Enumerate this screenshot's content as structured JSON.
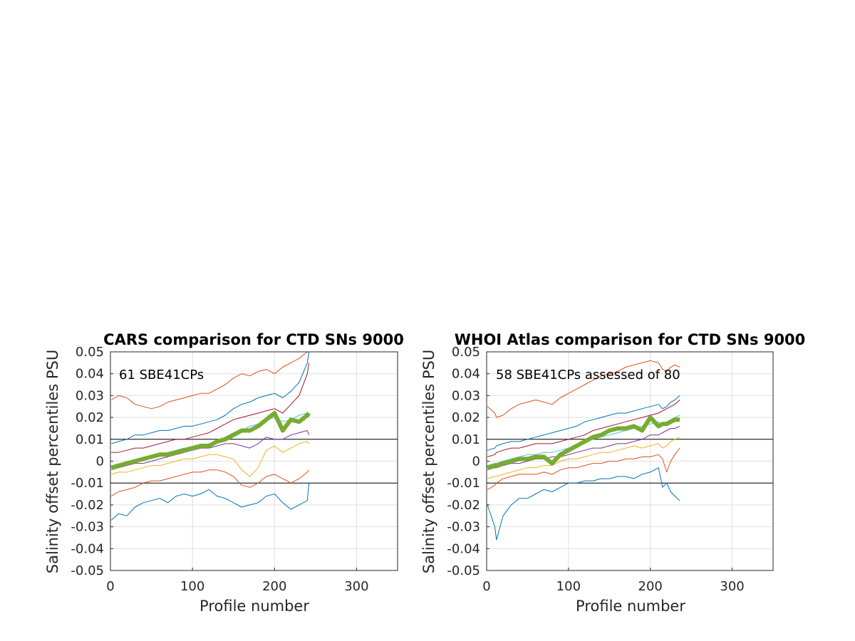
{
  "chart_data": [
    {
      "type": "line",
      "title": "CARS comparison for CTD SNs 9000",
      "xlabel": "Profile number",
      "ylabel": "Salinity offset percentiles PSU",
      "annotation": "61 SBE41CPs",
      "xlim": [
        0,
        350
      ],
      "ylim": [
        -0.05,
        0.05
      ],
      "xticks": [
        "0",
        "100",
        "200",
        "300"
      ],
      "yticks": [
        "-0.05",
        "-0.04",
        "-0.03",
        "-0.02",
        "-0.01",
        "0",
        "0.01",
        "0.02",
        "0.03",
        "0.04",
        "0.05"
      ],
      "reference_lines": [
        0.01,
        -0.01
      ],
      "grid": true,
      "x": [
        1,
        10,
        20,
        30,
        40,
        50,
        60,
        70,
        80,
        90,
        100,
        110,
        120,
        130,
        140,
        150,
        160,
        170,
        180,
        190,
        200,
        210,
        220,
        230,
        240,
        242
      ],
      "series": [
        {
          "color": "#0072BD",
          "values": [
            -0.027,
            -0.024,
            -0.025,
            -0.021,
            -0.019,
            -0.018,
            -0.017,
            -0.019,
            -0.016,
            -0.015,
            -0.016,
            -0.015,
            -0.013,
            -0.016,
            -0.017,
            -0.019,
            -0.021,
            -0.02,
            -0.019,
            -0.016,
            -0.015,
            -0.019,
            -0.022,
            -0.02,
            -0.018,
            -0.01
          ]
        },
        {
          "color": "#D95319",
          "values": [
            -0.016,
            -0.014,
            -0.013,
            -0.012,
            -0.01,
            -0.009,
            -0.009,
            -0.008,
            -0.007,
            -0.006,
            -0.005,
            -0.005,
            -0.004,
            -0.004,
            -0.005,
            -0.007,
            -0.011,
            -0.012,
            -0.01,
            -0.007,
            -0.006,
            -0.008,
            -0.01,
            -0.008,
            -0.005,
            -0.004
          ]
        },
        {
          "color": "#EDB120",
          "values": [
            -0.006,
            -0.005,
            -0.005,
            -0.004,
            -0.003,
            -0.002,
            -0.002,
            -0.001,
            0.0,
            0.001,
            0.001,
            0.002,
            0.003,
            0.003,
            0.002,
            0.001,
            -0.004,
            -0.007,
            -0.003,
            0.005,
            0.007,
            0.004,
            0.006,
            0.008,
            0.009,
            0.008
          ]
        },
        {
          "color": "#7E2F8E",
          "values": [
            -0.004,
            -0.003,
            -0.002,
            -0.001,
            -0.001,
            0.0,
            0.001,
            0.002,
            0.003,
            0.004,
            0.005,
            0.006,
            0.006,
            0.007,
            0.008,
            0.008,
            0.007,
            0.006,
            0.008,
            0.011,
            0.01,
            0.01,
            0.012,
            0.013,
            0.014,
            0.012
          ]
        },
        {
          "color": "#4DBEEE",
          "values": [
            -0.003,
            -0.002,
            -0.001,
            0.0,
            0.001,
            0.002,
            0.003,
            0.004,
            0.005,
            0.006,
            0.006,
            0.007,
            0.008,
            0.009,
            0.011,
            0.013,
            0.014,
            0.016,
            0.017,
            0.019,
            0.02,
            0.018,
            0.019,
            0.021,
            0.022,
            0.02
          ]
        },
        {
          "color": "#A2142F",
          "values": [
            0.004,
            0.004,
            0.005,
            0.006,
            0.006,
            0.007,
            0.008,
            0.009,
            0.01,
            0.01,
            0.011,
            0.012,
            0.013,
            0.015,
            0.017,
            0.019,
            0.02,
            0.021,
            0.022,
            0.023,
            0.024,
            0.022,
            0.026,
            0.03,
            0.04,
            0.045
          ]
        },
        {
          "color": "#0072BD",
          "values": [
            0.008,
            0.009,
            0.01,
            0.012,
            0.012,
            0.013,
            0.014,
            0.014,
            0.015,
            0.016,
            0.016,
            0.017,
            0.018,
            0.019,
            0.021,
            0.024,
            0.026,
            0.027,
            0.029,
            0.03,
            0.031,
            0.029,
            0.032,
            0.036,
            0.045,
            0.05
          ]
        },
        {
          "color": "#D95319",
          "values": [
            0.028,
            0.03,
            0.029,
            0.026,
            0.025,
            0.024,
            0.025,
            0.027,
            0.028,
            0.029,
            0.03,
            0.031,
            0.031,
            0.033,
            0.035,
            0.038,
            0.04,
            0.039,
            0.041,
            0.042,
            0.04,
            0.043,
            0.045,
            0.047,
            0.05,
            0.05
          ]
        },
        {
          "color": "#77AC30",
          "values": [
            -0.003,
            -0.002,
            -0.001,
            0.0,
            0.001,
            0.002,
            0.003,
            0.003,
            0.004,
            0.005,
            0.006,
            0.007,
            0.007,
            0.009,
            0.01,
            0.012,
            0.014,
            0.014,
            0.016,
            0.019,
            0.022,
            0.014,
            0.019,
            0.018,
            0.021,
            0.022
          ],
          "thick": true
        }
      ]
    },
    {
      "type": "line",
      "title": "WHOI Atlas comparison for CTD SNs 9000",
      "xlabel": "Profile number",
      "ylabel": "Salinity offset percentiles PSU",
      "annotation": "58 SBE41CPs assessed of 80",
      "xlim": [
        0,
        350
      ],
      "ylim": [
        -0.05,
        0.05
      ],
      "xticks": [
        "0",
        "100",
        "200",
        "300"
      ],
      "yticks": [
        "-0.05",
        "-0.04",
        "-0.03",
        "-0.02",
        "-0.01",
        "0",
        "0.01",
        "0.02",
        "0.03",
        "0.04",
        "0.05"
      ],
      "reference_lines": [
        0.01,
        -0.01
      ],
      "grid": true,
      "x": [
        1,
        10,
        12,
        20,
        30,
        40,
        50,
        60,
        70,
        80,
        90,
        100,
        110,
        120,
        130,
        140,
        150,
        160,
        170,
        180,
        190,
        200,
        210,
        215,
        220,
        225,
        230,
        236
      ],
      "series": [
        {
          "color": "#0072BD",
          "values": [
            -0.02,
            -0.03,
            -0.036,
            -0.025,
            -0.02,
            -0.017,
            -0.017,
            -0.015,
            -0.013,
            -0.014,
            -0.012,
            -0.01,
            -0.01,
            -0.009,
            -0.009,
            -0.008,
            -0.008,
            -0.007,
            -0.007,
            -0.008,
            -0.006,
            -0.005,
            -0.003,
            -0.012,
            -0.01,
            -0.014,
            -0.016,
            -0.018
          ]
        },
        {
          "color": "#D95319",
          "values": [
            -0.013,
            -0.011,
            -0.01,
            -0.008,
            -0.007,
            -0.006,
            -0.006,
            -0.006,
            -0.005,
            -0.006,
            -0.004,
            -0.003,
            -0.003,
            -0.002,
            -0.001,
            -0.001,
            0.0,
            0.0,
            0.001,
            0.001,
            0.002,
            0.002,
            0.003,
            0.001,
            -0.005,
            0.0,
            0.003,
            0.006
          ]
        },
        {
          "color": "#EDB120",
          "values": [
            -0.008,
            -0.007,
            -0.007,
            -0.006,
            -0.005,
            -0.004,
            -0.003,
            -0.003,
            -0.002,
            -0.002,
            0.0,
            0.001,
            0.001,
            0.002,
            0.003,
            0.004,
            0.004,
            0.005,
            0.006,
            0.007,
            0.006,
            0.007,
            0.008,
            0.006,
            0.007,
            0.009,
            0.01,
            0.011
          ]
        },
        {
          "color": "#7E2F8E",
          "values": [
            -0.004,
            -0.003,
            -0.003,
            -0.002,
            -0.001,
            -0.001,
            0.0,
            0.001,
            0.001,
            0.002,
            0.002,
            0.003,
            0.004,
            0.005,
            0.006,
            0.006,
            0.007,
            0.008,
            0.008,
            0.009,
            0.01,
            0.012,
            0.012,
            0.013,
            0.014,
            0.015,
            0.015,
            0.016
          ]
        },
        {
          "color": "#4DBEEE",
          "values": [
            -0.002,
            -0.001,
            -0.001,
            0.0,
            0.001,
            0.002,
            0.003,
            0.003,
            0.004,
            0.004,
            0.005,
            0.006,
            0.007,
            0.009,
            0.01,
            0.011,
            0.012,
            0.013,
            0.014,
            0.015,
            0.016,
            0.017,
            0.018,
            0.017,
            0.018,
            0.019,
            0.02,
            0.021
          ]
        },
        {
          "color": "#A2142F",
          "values": [
            0.002,
            0.003,
            0.004,
            0.005,
            0.006,
            0.006,
            0.007,
            0.008,
            0.008,
            0.008,
            0.009,
            0.01,
            0.011,
            0.012,
            0.014,
            0.015,
            0.016,
            0.017,
            0.018,
            0.019,
            0.02,
            0.021,
            0.022,
            0.023,
            0.024,
            0.025,
            0.026,
            0.028
          ]
        },
        {
          "color": "#0072BD",
          "values": [
            0.005,
            0.006,
            0.007,
            0.008,
            0.009,
            0.009,
            0.01,
            0.011,
            0.012,
            0.013,
            0.014,
            0.015,
            0.016,
            0.018,
            0.019,
            0.02,
            0.021,
            0.022,
            0.022,
            0.023,
            0.024,
            0.025,
            0.026,
            0.024,
            0.025,
            0.027,
            0.028,
            0.03
          ]
        },
        {
          "color": "#D95319",
          "values": [
            0.025,
            0.022,
            0.02,
            0.021,
            0.024,
            0.026,
            0.027,
            0.028,
            0.027,
            0.026,
            0.029,
            0.031,
            0.033,
            0.035,
            0.037,
            0.039,
            0.04,
            0.041,
            0.043,
            0.044,
            0.045,
            0.046,
            0.045,
            0.042,
            0.041,
            0.043,
            0.044,
            0.043
          ]
        },
        {
          "color": "#77AC30",
          "values": [
            -0.003,
            -0.002,
            -0.002,
            -0.001,
            0.0,
            0.001,
            0.001,
            0.002,
            0.002,
            -0.001,
            0.003,
            0.005,
            0.007,
            0.009,
            0.011,
            0.012,
            0.014,
            0.015,
            0.015,
            0.016,
            0.014,
            0.02,
            0.016,
            0.017,
            0.017,
            0.018,
            0.019,
            0.019
          ],
          "thick": true
        }
      ]
    }
  ]
}
